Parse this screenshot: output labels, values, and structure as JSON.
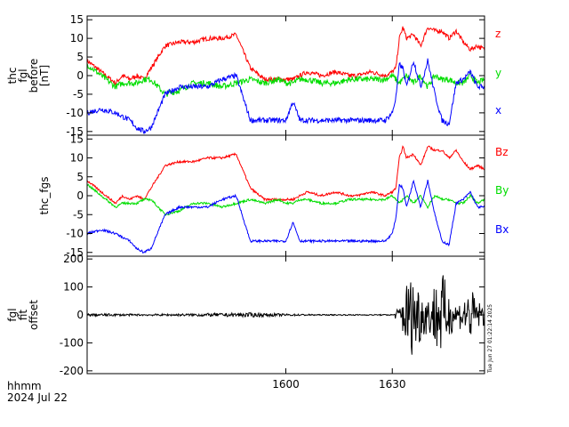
{
  "colors": {
    "x": "#0000ff",
    "y": "#00dd00",
    "z": "#ff0000",
    "axis": "#000000"
  },
  "footer": {
    "xaxis_label": "hhmm",
    "date": "2024 Jul 22"
  },
  "stamp": "Tue Jun 27 01:22:14 2025",
  "chart_data": [
    {
      "type": "line",
      "ylabel_lines": [
        "thc",
        "fgl",
        "before",
        "[nT]"
      ],
      "xlim": [
        1544,
        1656
      ],
      "x_ticks": [
        {
          "x": 1600,
          "label": "1600"
        },
        {
          "x": 1630,
          "label": "1630"
        }
      ],
      "ylim": [
        -16,
        16
      ],
      "y_ticks": [
        -15,
        -10,
        -5,
        0,
        5,
        10,
        15
      ],
      "x": [
        1544,
        1548,
        1552,
        1554,
        1556,
        1558,
        1560,
        1562,
        1566,
        1570,
        1574,
        1578,
        1582,
        1586,
        1590,
        1594,
        1598,
        1600,
        1602,
        1604,
        1606,
        1610,
        1614,
        1618,
        1620,
        1624,
        1628,
        1630,
        1631,
        1632,
        1633,
        1634,
        1636,
        1638,
        1640,
        1642,
        1644,
        1646,
        1648,
        1650,
        1652,
        1654,
        1656
      ],
      "series": [
        {
          "name": "z",
          "color_key": "z",
          "noise": 0.6,
          "values": [
            4,
            1,
            -2,
            0,
            -1,
            0,
            -1,
            2,
            8,
            9,
            9,
            10,
            10,
            11,
            2,
            -1,
            -1,
            -1,
            -1,
            0,
            1,
            0,
            1,
            0,
            0,
            1,
            0,
            1,
            2,
            10,
            13,
            10,
            11,
            8,
            13,
            12,
            12,
            10,
            12,
            9,
            7,
            8,
            7
          ]
        },
        {
          "name": "y",
          "color_key": "y",
          "noise": 0.8,
          "values": [
            3,
            0,
            -3,
            -2,
            -2,
            -2,
            -1,
            -1,
            -5,
            -4,
            -2,
            -2,
            -3,
            -2,
            -1,
            -2,
            -1,
            -2,
            -2,
            -1,
            -1,
            -2,
            -2,
            -1,
            -1,
            -1,
            -1,
            0,
            -1,
            -2,
            -1,
            0,
            -2,
            0,
            -3,
            0,
            -1,
            -1,
            -2,
            -2,
            0,
            -2,
            -1
          ]
        },
        {
          "name": "x",
          "color_key": "x",
          "noise": 0.7,
          "values": [
            -10,
            -9,
            -10,
            -11,
            -12,
            -14,
            -15,
            -14,
            -5,
            -3,
            -3,
            -3,
            -1,
            0,
            -12,
            -12,
            -12,
            -12,
            -7,
            -12,
            -12,
            -12,
            -12,
            -12,
            -12,
            -12,
            -12,
            -10,
            -6,
            3,
            2,
            -3,
            4,
            -3,
            4,
            -5,
            -12,
            -13,
            -2,
            -1,
            1,
            -3,
            -3
          ]
        }
      ]
    },
    {
      "type": "line",
      "ylabel_lines": [
        "thc_fgs"
      ],
      "xlim": [
        1544,
        1656
      ],
      "x_ticks": [
        {
          "x": 1600,
          "label": "1600"
        },
        {
          "x": 1630,
          "label": "1630"
        }
      ],
      "ylim": [
        -16,
        16
      ],
      "y_ticks": [
        -15,
        -10,
        -5,
        0,
        5,
        10,
        15
      ],
      "x": [
        1544,
        1548,
        1552,
        1554,
        1556,
        1558,
        1560,
        1562,
        1566,
        1570,
        1574,
        1578,
        1582,
        1586,
        1590,
        1594,
        1598,
        1600,
        1602,
        1604,
        1606,
        1610,
        1614,
        1618,
        1620,
        1624,
        1628,
        1630,
        1631,
        1632,
        1633,
        1634,
        1636,
        1638,
        1640,
        1642,
        1644,
        1646,
        1648,
        1650,
        1652,
        1654,
        1656
      ],
      "series": [
        {
          "name": "Bz",
          "color_key": "z",
          "noise": 0.3,
          "values": [
            4,
            1,
            -2,
            0,
            -1,
            0,
            -1,
            2,
            8,
            9,
            9,
            10,
            10,
            11,
            2,
            -1,
            -1,
            -1,
            -1,
            0,
            1,
            0,
            1,
            0,
            0,
            1,
            0,
            1,
            2,
            10,
            13,
            10,
            11,
            8,
            13,
            12,
            12,
            10,
            12,
            9,
            7,
            8,
            7
          ]
        },
        {
          "name": "By",
          "color_key": "y",
          "noise": 0.3,
          "values": [
            3,
            0,
            -3,
            -2,
            -2,
            -2,
            -1,
            -1,
            -5,
            -4,
            -2,
            -2,
            -3,
            -2,
            -1,
            -2,
            -1,
            -2,
            -2,
            -1,
            -1,
            -2,
            -2,
            -1,
            -1,
            -1,
            -1,
            0,
            -1,
            -2,
            -1,
            0,
            -2,
            0,
            -3,
            0,
            -1,
            -1,
            -2,
            -2,
            0,
            -2,
            -1
          ]
        },
        {
          "name": "Bx",
          "color_key": "x",
          "noise": 0.3,
          "values": [
            -10,
            -9,
            -10,
            -11,
            -12,
            -14,
            -15,
            -14,
            -5,
            -3,
            -3,
            -3,
            -1,
            0,
            -12,
            -12,
            -12,
            -12,
            -7,
            -12,
            -12,
            -12,
            -12,
            -12,
            -12,
            -12,
            -12,
            -10,
            -6,
            3,
            2,
            -3,
            4,
            -3,
            4,
            -5,
            -12,
            -13,
            -2,
            -1,
            1,
            -3,
            -3
          ]
        }
      ]
    },
    {
      "type": "line",
      "ylabel_lines": [
        "fgl",
        "fit",
        "offset"
      ],
      "xlim": [
        1544,
        1656
      ],
      "x_ticks": [
        {
          "x": 1600,
          "label": "1600"
        },
        {
          "x": 1630,
          "label": "1630"
        }
      ],
      "ylim": [
        -210,
        210
      ],
      "y_ticks": [
        -200,
        -100,
        0,
        100,
        200
      ],
      "x": [
        1544,
        1560,
        1570,
        1580,
        1590,
        1600,
        1610,
        1620,
        1630,
        1632,
        1634,
        1636,
        1638,
        1640,
        1642,
        1644,
        1646,
        1648,
        1650,
        1652,
        1654,
        1656
      ],
      "series": [
        {
          "name": "",
          "color_key": "axis",
          "noise_amplitude": [
            5,
            3,
            4,
            6,
            8,
            4,
            2,
            2,
            2,
            30,
            120,
            150,
            100,
            60,
            120,
            160,
            80,
            40,
            60,
            100,
            50,
            40
          ],
          "values": [
            0,
            0,
            0,
            0,
            0,
            0,
            0,
            0,
            0,
            0,
            0,
            0,
            0,
            0,
            0,
            0,
            0,
            0,
            0,
            0,
            0,
            0
          ]
        }
      ]
    }
  ]
}
